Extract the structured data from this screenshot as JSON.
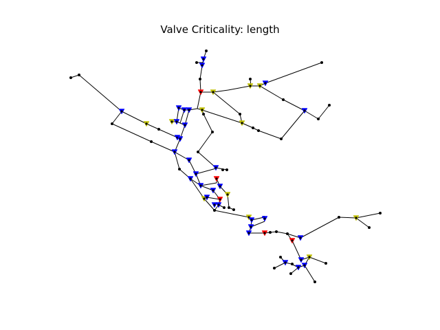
{
  "title": "Valve Criticality: length",
  "colors": {
    "pipe": "#000000",
    "node": "#000000",
    "valve_blue": "#0000ff",
    "valve_yellow": "#bfbf00",
    "valve_red": "#ff0000"
  },
  "marks": {
    "node_shape": "dot",
    "valve_shape": "triangle-down"
  }
}
